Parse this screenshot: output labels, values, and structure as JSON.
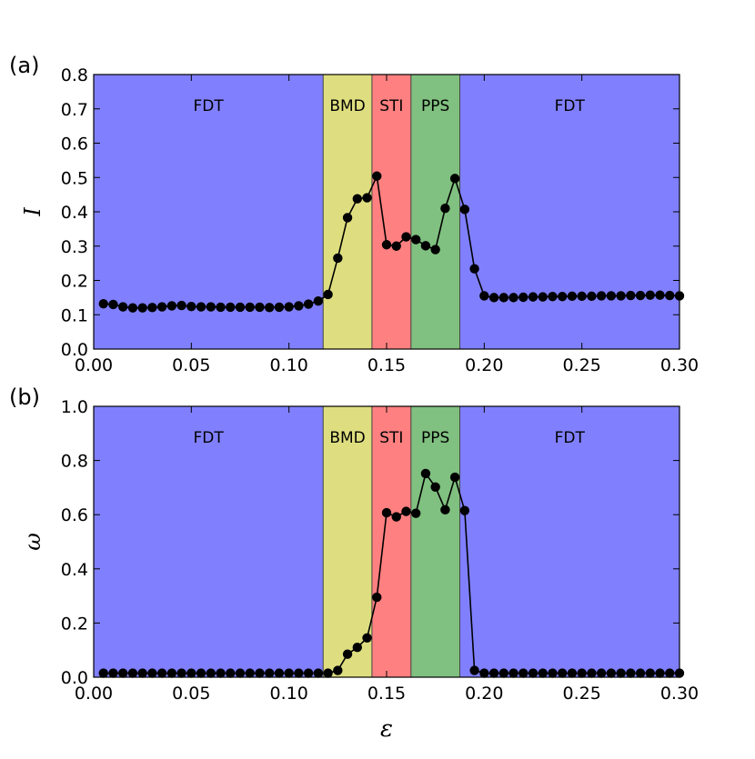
{
  "chart_data": [
    {
      "panel_label": "(a)",
      "type": "line",
      "ylabel": "I",
      "xlim": [
        0.0,
        0.3
      ],
      "ylim": [
        0.0,
        0.8
      ],
      "xticks": [
        "0.00",
        "0.05",
        "0.10",
        "0.15",
        "0.20",
        "0.25",
        "0.30"
      ],
      "yticks": [
        "0.0",
        "0.1",
        "0.2",
        "0.3",
        "0.4",
        "0.5",
        "0.6",
        "0.7",
        "0.8"
      ],
      "regions": [
        {
          "label": "FDT",
          "start": 0.0,
          "end": 0.1175,
          "color": "#8080ff"
        },
        {
          "label": "BMD",
          "start": 0.1175,
          "end": 0.1425,
          "color": "#dede80"
        },
        {
          "label": "STI",
          "start": 0.1425,
          "end": 0.1625,
          "color": "#ff8080"
        },
        {
          "label": "PPS",
          "start": 0.1625,
          "end": 0.1875,
          "color": "#80c080"
        },
        {
          "label": "FDT",
          "start": 0.1875,
          "end": 0.3,
          "color": "#8080ff"
        }
      ],
      "x": [
        0.005,
        0.01,
        0.015,
        0.02,
        0.025,
        0.03,
        0.035,
        0.04,
        0.045,
        0.05,
        0.055,
        0.06,
        0.065,
        0.07,
        0.075,
        0.08,
        0.085,
        0.09,
        0.095,
        0.1,
        0.105,
        0.11,
        0.115,
        0.12,
        0.125,
        0.13,
        0.135,
        0.14,
        0.145,
        0.15,
        0.155,
        0.16,
        0.165,
        0.17,
        0.175,
        0.18,
        0.185,
        0.19,
        0.195,
        0.2,
        0.205,
        0.21,
        0.215,
        0.22,
        0.225,
        0.23,
        0.235,
        0.24,
        0.245,
        0.25,
        0.255,
        0.26,
        0.265,
        0.27,
        0.275,
        0.28,
        0.285,
        0.29,
        0.295,
        0.3
      ],
      "y": [
        0.132,
        0.13,
        0.123,
        0.12,
        0.12,
        0.121,
        0.123,
        0.126,
        0.127,
        0.124,
        0.123,
        0.123,
        0.122,
        0.122,
        0.122,
        0.122,
        0.122,
        0.121,
        0.122,
        0.123,
        0.126,
        0.131,
        0.14,
        0.159,
        0.265,
        0.383,
        0.438,
        0.441,
        0.504,
        0.304,
        0.3,
        0.327,
        0.319,
        0.301,
        0.29,
        0.41,
        0.497,
        0.407,
        0.234,
        0.155,
        0.15,
        0.15,
        0.15,
        0.151,
        0.152,
        0.152,
        0.153,
        0.153,
        0.154,
        0.154,
        0.154,
        0.155,
        0.155,
        0.155,
        0.156,
        0.156,
        0.157,
        0.157,
        0.156,
        0.155
      ]
    },
    {
      "panel_label": "(b)",
      "type": "line",
      "ylabel": "ω",
      "xlabel": "ε",
      "xlim": [
        0.0,
        0.3
      ],
      "ylim": [
        0.0,
        1.0
      ],
      "xticks": [
        "0.00",
        "0.05",
        "0.10",
        "0.15",
        "0.20",
        "0.25",
        "0.30"
      ],
      "yticks": [
        "0.0",
        "0.2",
        "0.4",
        "0.6",
        "0.8",
        "1.0"
      ],
      "regions": [
        {
          "label": "FDT",
          "start": 0.0,
          "end": 0.1175,
          "color": "#8080ff"
        },
        {
          "label": "BMD",
          "start": 0.1175,
          "end": 0.1425,
          "color": "#dede80"
        },
        {
          "label": "STI",
          "start": 0.1425,
          "end": 0.1625,
          "color": "#ff8080"
        },
        {
          "label": "PPS",
          "start": 0.1625,
          "end": 0.1875,
          "color": "#80c080"
        },
        {
          "label": "FDT",
          "start": 0.1875,
          "end": 0.3,
          "color": "#8080ff"
        }
      ],
      "x": [
        0.005,
        0.01,
        0.015,
        0.02,
        0.025,
        0.03,
        0.035,
        0.04,
        0.045,
        0.05,
        0.055,
        0.06,
        0.065,
        0.07,
        0.075,
        0.08,
        0.085,
        0.09,
        0.095,
        0.1,
        0.105,
        0.11,
        0.115,
        0.12,
        0.125,
        0.13,
        0.135,
        0.14,
        0.145,
        0.15,
        0.155,
        0.16,
        0.165,
        0.17,
        0.175,
        0.18,
        0.185,
        0.19,
        0.195,
        0.2,
        0.205,
        0.21,
        0.215,
        0.22,
        0.225,
        0.23,
        0.235,
        0.24,
        0.245,
        0.25,
        0.255,
        0.26,
        0.265,
        0.27,
        0.275,
        0.28,
        0.285,
        0.29,
        0.295,
        0.3
      ],
      "y": [
        0.015,
        0.015,
        0.015,
        0.015,
        0.015,
        0.015,
        0.015,
        0.015,
        0.015,
        0.015,
        0.015,
        0.015,
        0.015,
        0.015,
        0.015,
        0.015,
        0.015,
        0.015,
        0.015,
        0.015,
        0.015,
        0.015,
        0.015,
        0.015,
        0.025,
        0.085,
        0.11,
        0.145,
        0.295,
        0.607,
        0.592,
        0.612,
        0.605,
        0.752,
        0.702,
        0.618,
        0.738,
        0.615,
        0.025,
        0.015,
        0.015,
        0.015,
        0.015,
        0.015,
        0.015,
        0.015,
        0.015,
        0.015,
        0.015,
        0.015,
        0.015,
        0.015,
        0.015,
        0.015,
        0.015,
        0.015,
        0.015,
        0.015,
        0.015,
        0.015
      ]
    }
  ]
}
